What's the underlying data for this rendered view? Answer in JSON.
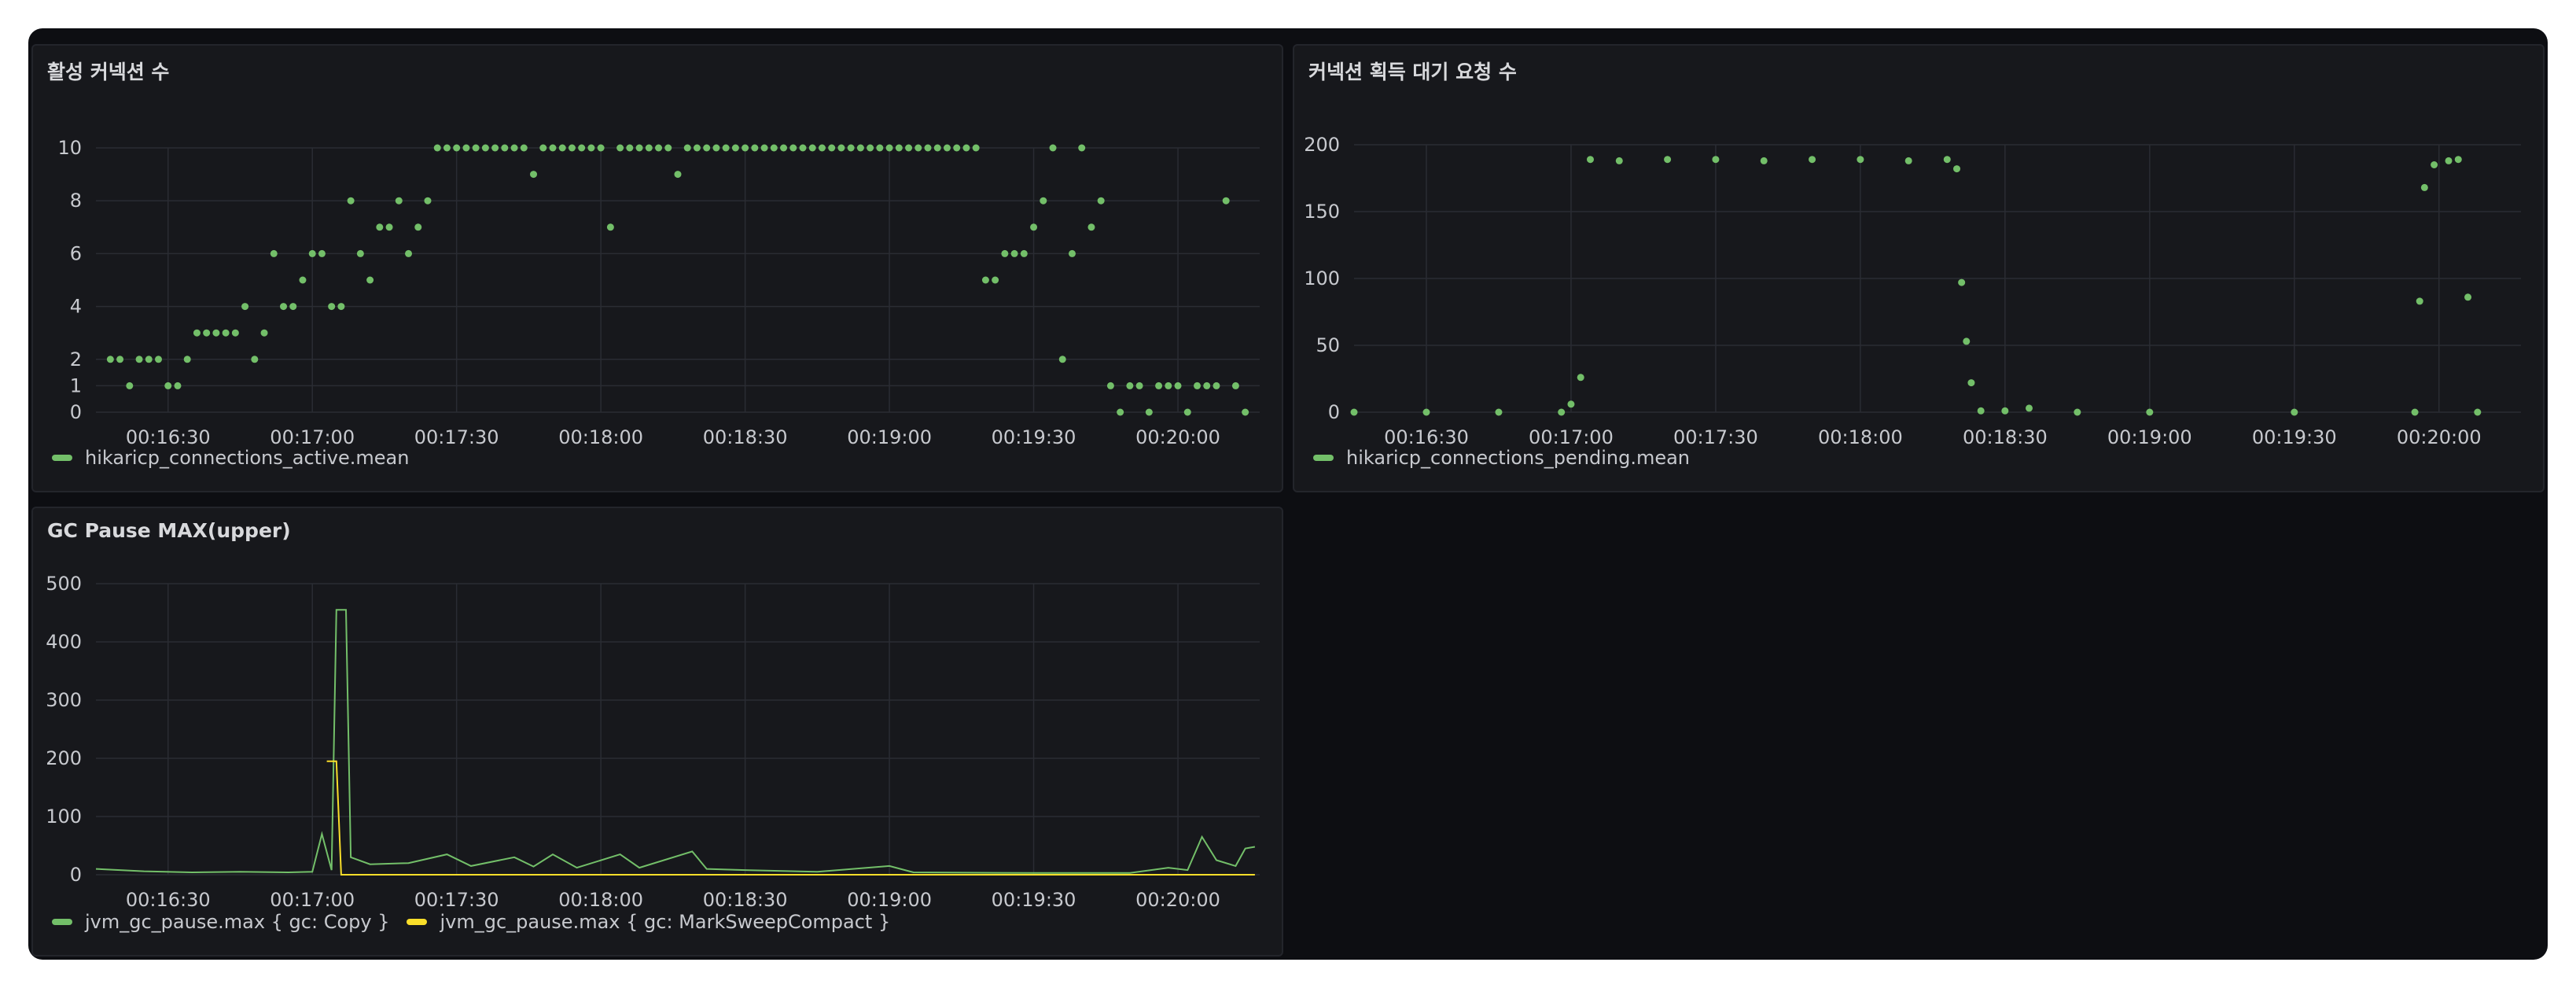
{
  "colors": {
    "green": "#73bf69",
    "yellow": "#fade2a",
    "bg": "#17181c"
  },
  "panels": {
    "active": {
      "title": "활성 커넥션 수",
      "legend": [
        "hikaricp_connections_active.mean"
      ]
    },
    "pending": {
      "title": "커넥션 획득 대기 요청 수",
      "legend": [
        "hikaricp_connections_pending.mean"
      ]
    },
    "gc": {
      "title": "GC Pause MAX(upper)",
      "legend": [
        "jvm_gc_pause.max { gc: Copy }",
        "jvm_gc_pause.max { gc: MarkSweepCompact }"
      ]
    }
  },
  "chart_data": [
    {
      "type": "scatter",
      "title": "활성 커넥션 수",
      "x_ticks": [
        "00:16:30",
        "00:17:00",
        "00:17:30",
        "00:18:00",
        "00:18:30",
        "00:19:00",
        "00:19:30",
        "00:20:00"
      ],
      "y_ticks": [
        0,
        1,
        2,
        4,
        6,
        8,
        10
      ],
      "xlim": [
        "00:16:15",
        "00:20:17"
      ],
      "ylim": [
        0,
        10
      ],
      "series": [
        {
          "name": "hikaricp_connections_active.mean",
          "color": "#73bf69",
          "points": [
            [
              "00:16:18",
              2
            ],
            [
              "00:16:20",
              2
            ],
            [
              "00:16:22",
              1
            ],
            [
              "00:16:24",
              2
            ],
            [
              "00:16:26",
              2
            ],
            [
              "00:16:28",
              2
            ],
            [
              "00:16:30",
              1
            ],
            [
              "00:16:32",
              1
            ],
            [
              "00:16:34",
              2
            ],
            [
              "00:16:36",
              3
            ],
            [
              "00:16:38",
              3
            ],
            [
              "00:16:40",
              3
            ],
            [
              "00:16:42",
              3
            ],
            [
              "00:16:44",
              3
            ],
            [
              "00:16:46",
              4
            ],
            [
              "00:16:48",
              2
            ],
            [
              "00:16:50",
              3
            ],
            [
              "00:16:52",
              6
            ],
            [
              "00:16:54",
              4
            ],
            [
              "00:16:56",
              4
            ],
            [
              "00:16:58",
              5
            ],
            [
              "00:17:00",
              6
            ],
            [
              "00:17:02",
              6
            ],
            [
              "00:17:04",
              4
            ],
            [
              "00:17:06",
              4
            ],
            [
              "00:17:08",
              8
            ],
            [
              "00:17:10",
              6
            ],
            [
              "00:17:12",
              5
            ],
            [
              "00:17:14",
              7
            ],
            [
              "00:17:16",
              7
            ],
            [
              "00:17:18",
              8
            ],
            [
              "00:17:20",
              6
            ],
            [
              "00:17:22",
              7
            ],
            [
              "00:17:24",
              8
            ],
            [
              "00:17:26",
              10
            ],
            [
              "00:17:28",
              10
            ],
            [
              "00:17:30",
              10
            ],
            [
              "00:17:32",
              10
            ],
            [
              "00:17:34",
              10
            ],
            [
              "00:17:36",
              10
            ],
            [
              "00:17:38",
              10
            ],
            [
              "00:17:40",
              10
            ],
            [
              "00:17:42",
              10
            ],
            [
              "00:17:44",
              10
            ],
            [
              "00:17:46",
              9
            ],
            [
              "00:17:48",
              10
            ],
            [
              "00:17:50",
              10
            ],
            [
              "00:17:52",
              10
            ],
            [
              "00:17:54",
              10
            ],
            [
              "00:17:56",
              10
            ],
            [
              "00:17:58",
              10
            ],
            [
              "00:18:00",
              10
            ],
            [
              "00:18:02",
              7
            ],
            [
              "00:18:04",
              10
            ],
            [
              "00:18:06",
              10
            ],
            [
              "00:18:08",
              10
            ],
            [
              "00:18:10",
              10
            ],
            [
              "00:18:12",
              10
            ],
            [
              "00:18:14",
              10
            ],
            [
              "00:18:16",
              9
            ],
            [
              "00:18:18",
              10
            ],
            [
              "00:18:20",
              10
            ],
            [
              "00:18:22",
              10
            ],
            [
              "00:18:24",
              10
            ],
            [
              "00:18:26",
              10
            ],
            [
              "00:18:28",
              10
            ],
            [
              "00:18:30",
              10
            ],
            [
              "00:18:32",
              10
            ],
            [
              "00:18:34",
              10
            ],
            [
              "00:18:36",
              10
            ],
            [
              "00:18:38",
              10
            ],
            [
              "00:18:40",
              10
            ],
            [
              "00:18:42",
              10
            ],
            [
              "00:18:44",
              10
            ],
            [
              "00:18:46",
              10
            ],
            [
              "00:18:48",
              10
            ],
            [
              "00:18:50",
              10
            ],
            [
              "00:18:52",
              10
            ],
            [
              "00:18:54",
              10
            ],
            [
              "00:18:56",
              10
            ],
            [
              "00:18:58",
              10
            ],
            [
              "00:19:00",
              10
            ],
            [
              "00:19:02",
              10
            ],
            [
              "00:19:04",
              10
            ],
            [
              "00:19:06",
              10
            ],
            [
              "00:19:08",
              10
            ],
            [
              "00:19:10",
              10
            ],
            [
              "00:19:12",
              10
            ],
            [
              "00:19:14",
              10
            ],
            [
              "00:19:16",
              10
            ],
            [
              "00:19:18",
              10
            ],
            [
              "00:19:20",
              5
            ],
            [
              "00:19:22",
              5
            ],
            [
              "00:19:24",
              6
            ],
            [
              "00:19:26",
              6
            ],
            [
              "00:19:28",
              6
            ],
            [
              "00:19:30",
              7
            ],
            [
              "00:19:32",
              8
            ],
            [
              "00:19:34",
              10
            ],
            [
              "00:19:36",
              2
            ],
            [
              "00:19:38",
              6
            ],
            [
              "00:19:40",
              10
            ],
            [
              "00:19:42",
              7
            ],
            [
              "00:19:44",
              8
            ],
            [
              "00:19:46",
              1
            ],
            [
              "00:19:48",
              0
            ],
            [
              "00:19:50",
              1
            ],
            [
              "00:19:52",
              1
            ],
            [
              "00:19:54",
              0
            ],
            [
              "00:19:56",
              1
            ],
            [
              "00:19:58",
              1
            ],
            [
              "00:20:00",
              1
            ],
            [
              "00:20:02",
              0
            ],
            [
              "00:20:04",
              1
            ],
            [
              "00:20:06",
              1
            ],
            [
              "00:20:08",
              1
            ],
            [
              "00:20:10",
              8
            ],
            [
              "00:20:12",
              1
            ],
            [
              "00:20:14",
              0
            ]
          ]
        }
      ]
    },
    {
      "type": "scatter",
      "title": "커넥션 획득 대기 요청 수",
      "x_ticks": [
        "00:16:30",
        "00:17:00",
        "00:17:30",
        "00:18:00",
        "00:18:30",
        "00:19:00",
        "00:19:30",
        "00:20:00"
      ],
      "y_ticks": [
        0,
        50,
        100,
        150,
        200
      ],
      "ylim": [
        0,
        200
      ],
      "series": [
        {
          "name": "hikaricp_connections_pending.mean",
          "color": "#73bf69",
          "points": [
            [
              "00:16:15",
              0
            ],
            [
              "00:16:30",
              0
            ],
            [
              "00:16:45",
              0
            ],
            [
              "00:16:58",
              0
            ],
            [
              "00:17:00",
              6
            ],
            [
              "00:17:02",
              26
            ],
            [
              "00:17:04",
              189
            ],
            [
              "00:17:10",
              188
            ],
            [
              "00:17:20",
              189
            ],
            [
              "00:17:30",
              189
            ],
            [
              "00:17:40",
              188
            ],
            [
              "00:17:50",
              189
            ],
            [
              "00:18:00",
              189
            ],
            [
              "00:18:10",
              188
            ],
            [
              "00:18:18",
              189
            ],
            [
              "00:18:20",
              182
            ],
            [
              "00:18:21",
              97
            ],
            [
              "00:18:22",
              53
            ],
            [
              "00:18:23",
              22
            ],
            [
              "00:18:25",
              1
            ],
            [
              "00:18:30",
              1
            ],
            [
              "00:18:35",
              3
            ],
            [
              "00:18:45",
              0
            ],
            [
              "00:19:00",
              0
            ],
            [
              "00:19:30",
              0
            ],
            [
              "00:19:55",
              0
            ],
            [
              "00:19:56",
              83
            ],
            [
              "00:19:57",
              168
            ],
            [
              "00:19:59",
              185
            ],
            [
              "00:20:02",
              188
            ],
            [
              "00:20:04",
              189
            ],
            [
              "00:20:06",
              86
            ],
            [
              "00:20:08",
              0
            ]
          ]
        }
      ]
    },
    {
      "type": "line",
      "title": "GC Pause MAX(upper)",
      "x_ticks": [
        "00:16:30",
        "00:17:00",
        "00:17:30",
        "00:18:00",
        "00:18:30",
        "00:19:00",
        "00:19:30",
        "00:20:00"
      ],
      "y_ticks": [
        0,
        100,
        200,
        300,
        400,
        500
      ],
      "ylim": [
        0,
        500
      ],
      "series": [
        {
          "name": "jvm_gc_pause.max { gc: Copy }",
          "color": "#73bf69",
          "points": [
            [
              "00:16:15",
              10
            ],
            [
              "00:16:25",
              6
            ],
            [
              "00:16:35",
              4
            ],
            [
              "00:16:45",
              5
            ],
            [
              "00:16:55",
              4
            ],
            [
              "00:17:00",
              5
            ],
            [
              "00:17:02",
              70
            ],
            [
              "00:17:04",
              8
            ],
            [
              "00:17:05",
              455
            ],
            [
              "00:17:07",
              455
            ],
            [
              "00:17:08",
              30
            ],
            [
              "00:17:12",
              18
            ],
            [
              "00:17:20",
              20
            ],
            [
              "00:17:28",
              35
            ],
            [
              "00:17:33",
              15
            ],
            [
              "00:17:42",
              30
            ],
            [
              "00:17:46",
              14
            ],
            [
              "00:17:50",
              35
            ],
            [
              "00:17:55",
              12
            ],
            [
              "00:18:04",
              35
            ],
            [
              "00:18:08",
              12
            ],
            [
              "00:18:19",
              40
            ],
            [
              "00:18:22",
              10
            ],
            [
              "00:18:30",
              8
            ],
            [
              "00:18:45",
              5
            ],
            [
              "00:19:00",
              15
            ],
            [
              "00:19:05",
              4
            ],
            [
              "00:19:30",
              3
            ],
            [
              "00:19:50",
              3
            ],
            [
              "00:19:58",
              12
            ],
            [
              "00:20:02",
              8
            ],
            [
              "00:20:05",
              65
            ],
            [
              "00:20:08",
              25
            ],
            [
              "00:20:12",
              15
            ],
            [
              "00:20:14",
              45
            ],
            [
              "00:20:16",
              48
            ]
          ]
        },
        {
          "name": "jvm_gc_pause.max { gc: MarkSweepCompact }",
          "color": "#fade2a",
          "points": [
            [
              "00:17:03",
              195
            ],
            [
              "00:17:05",
              195
            ],
            [
              "00:17:06",
              0
            ],
            [
              "00:20:16",
              0
            ]
          ]
        }
      ]
    }
  ]
}
